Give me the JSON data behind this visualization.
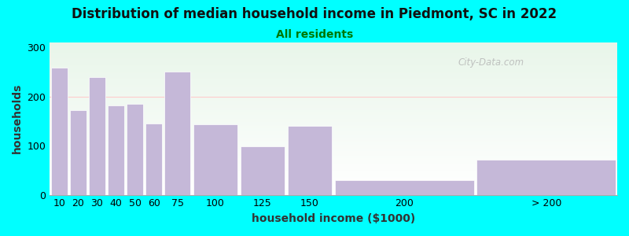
{
  "title": "Distribution of median household income in Piedmont, SC in 2022",
  "subtitle": "All residents",
  "xlabel": "household income ($1000)",
  "ylabel": "households",
  "background_color": "#00ffff",
  "bar_color": "#c5b8d8",
  "bar_edge_color": "#ffffff",
  "categories": [
    "10",
    "20",
    "30",
    "40",
    "50",
    "60",
    "75",
    "100",
    "125",
    "150",
    "200",
    "> 200"
  ],
  "values": [
    258,
    172,
    240,
    182,
    185,
    145,
    250,
    143,
    98,
    140,
    30,
    72
  ],
  "left_edges": [
    0,
    10,
    20,
    30,
    40,
    50,
    60,
    75,
    100,
    125,
    150,
    225
  ],
  "widths": [
    10,
    10,
    10,
    10,
    10,
    10,
    15,
    25,
    25,
    25,
    75,
    75
  ],
  "tick_positions": [
    5,
    15,
    25,
    35,
    45,
    55,
    67.5,
    87.5,
    112.5,
    137.5,
    187.5,
    262.5
  ],
  "tick_labels": [
    "10",
    "20",
    "30",
    "40",
    "50",
    "60",
    "75",
    "100",
    "125",
    "150",
    "200",
    "> 200"
  ],
  "xlim": [
    0,
    300
  ],
  "ylim": [
    0,
    310
  ],
  "yticks": [
    0,
    100,
    200,
    300
  ],
  "watermark": "City-Data.com",
  "title_fontsize": 12,
  "subtitle_fontsize": 10,
  "label_fontsize": 10,
  "tick_fontsize": 9,
  "subtitle_color": "#007700",
  "hline_color": "#ffcccc",
  "hline_y": 200
}
